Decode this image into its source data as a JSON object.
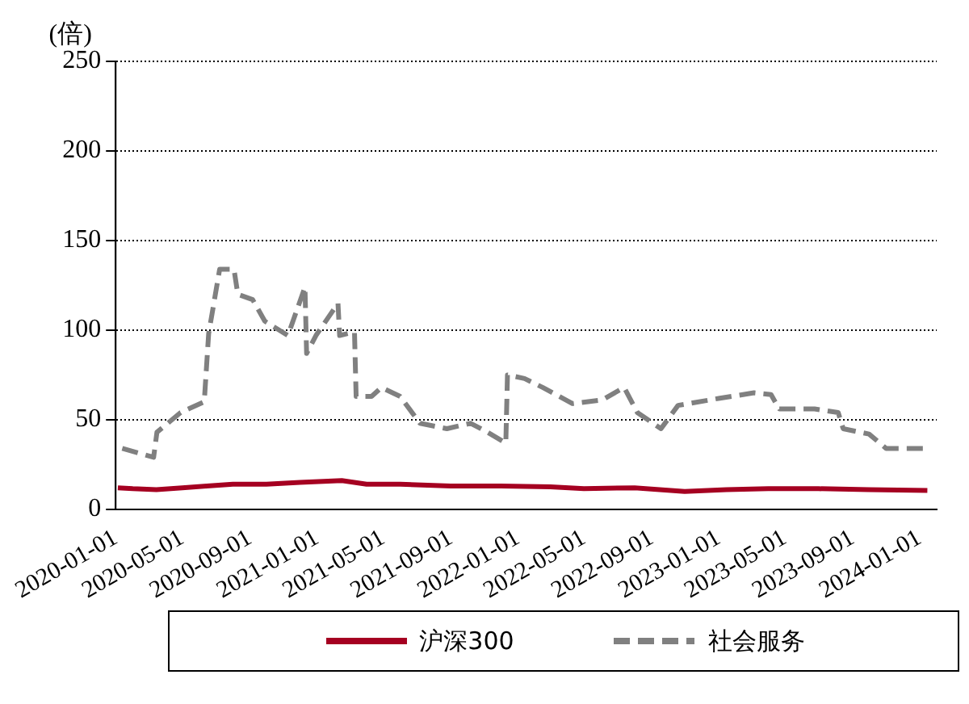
{
  "chart_data": {
    "type": "line",
    "ylabel": "(倍)",
    "xlim": [
      "2020-01-01",
      "2024-02-01"
    ],
    "xticks": [
      "2020-01-01",
      "2020-05-01",
      "2020-09-01",
      "2021-01-01",
      "2021-05-01",
      "2021-09-01",
      "2022-01-01",
      "2022-05-01",
      "2022-09-01",
      "2023-01-01",
      "2023-05-01",
      "2023-09-01",
      "2024-01-01"
    ],
    "ylim": [
      0,
      250
    ],
    "yticks": [
      0,
      50,
      100,
      150,
      200,
      250
    ],
    "grid": "y",
    "legend": "bottom",
    "marker": "none",
    "series": [
      {
        "name": "沪深300",
        "color": "#a50021",
        "line_style": "solid",
        "x": [
          "2020-01-05",
          "2020-02-01",
          "2020-03-15",
          "2020-05-01",
          "2020-06-15",
          "2020-08-01",
          "2020-10-01",
          "2020-12-01",
          "2021-02-15",
          "2021-04-01",
          "2021-06-01",
          "2021-09-01",
          "2021-12-01",
          "2022-03-01",
          "2022-05-01",
          "2022-08-01",
          "2022-10-31",
          "2023-01-15",
          "2023-04-01",
          "2023-07-01",
          "2023-10-01",
          "2024-01-15"
        ],
        "values": [
          12,
          11.5,
          11,
          12,
          13,
          14,
          14,
          15,
          16,
          14,
          14,
          13,
          13,
          12.5,
          11.5,
          12,
          10,
          11,
          11.5,
          11.5,
          11,
          10.5
        ]
      },
      {
        "name": "社会服务",
        "color": "#808080",
        "line_style": "dashed",
        "x": [
          "2020-01-13",
          "2020-03-10",
          "2020-03-16",
          "2020-04-28",
          "2020-06-10",
          "2020-06-18",
          "2020-07-08",
          "2020-08-03",
          "2020-08-10",
          "2020-09-06",
          "2020-09-28",
          "2020-11-09",
          "2020-12-10",
          "2020-12-13",
          "2020-12-30",
          "2021-02-08",
          "2021-02-11",
          "2021-03-10",
          "2021-03-13",
          "2021-04-10",
          "2021-04-28",
          "2021-06-01",
          "2021-07-07",
          "2021-08-25",
          "2021-10-07",
          "2021-11-01",
          "2021-12-10",
          "2021-12-13",
          "2022-01-13",
          "2022-02-15",
          "2022-04-10",
          "2022-06-03",
          "2022-07-13",
          "2022-08-06",
          "2022-09-18",
          "2022-10-19",
          "2023-01-03",
          "2023-03-06",
          "2023-04-06",
          "2023-04-21",
          "2023-06-24",
          "2023-08-06",
          "2023-08-15",
          "2023-10-01",
          "2023-11-01",
          "2024-01-10"
        ],
        "values": [
          34,
          29,
          43,
          54,
          60,
          98,
          134,
          134,
          120,
          117,
          105,
          97,
          124,
          87,
          97,
          115,
          97,
          99,
          63,
          63,
          68,
          63,
          48,
          45,
          48,
          44,
          37,
          75,
          73,
          68,
          59,
          61,
          68,
          54,
          45,
          58,
          62,
          65,
          64,
          56,
          56,
          54,
          45,
          42,
          34,
          34
        ]
      }
    ]
  }
}
